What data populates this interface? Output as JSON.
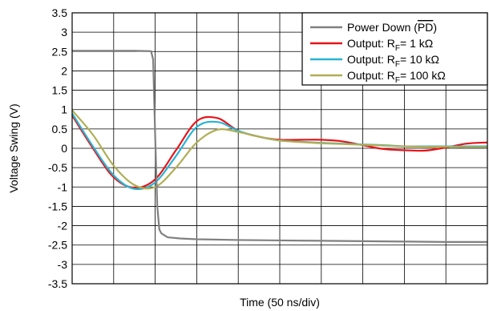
{
  "chart_data": {
    "type": "line",
    "xlabel": "Time (50 ns/div)",
    "ylabel": "Voltage Swing (V)",
    "xlim": [
      0,
      10
    ],
    "ylim": [
      -3.5,
      3.5
    ],
    "y_ticks": [
      "3.5",
      "3",
      "2.5",
      "2",
      "1.5",
      "1",
      "0.5",
      "0",
      "-0.5",
      "-1",
      "-1.5",
      "-2",
      "-2.5",
      "-3",
      "-3.5"
    ],
    "grid": true,
    "legend_position": "top-right",
    "series": [
      {
        "name_parts": {
          "base": "Power Down (",
          "overlined": "PD",
          "tail": ")"
        },
        "color": "#808080",
        "x": [
          0,
          1,
          1.5,
          1.9,
          1.95,
          2.0,
          2.05,
          2.1,
          2.15,
          2.3,
          2.6,
          3,
          4,
          5,
          6,
          7,
          8,
          9,
          10
        ],
        "y": [
          2.52,
          2.52,
          2.52,
          2.51,
          2.3,
          0.3,
          -1.5,
          -2.1,
          -2.2,
          -2.3,
          -2.33,
          -2.35,
          -2.37,
          -2.38,
          -2.39,
          -2.4,
          -2.41,
          -2.42,
          -2.42
        ]
      },
      {
        "name_parts": {
          "base": "Output: R",
          "sub": "F",
          "tail": "= 1 kΩ"
        },
        "color": "#e8141a",
        "x": [
          0,
          0.5,
          1,
          1.5,
          2,
          2.5,
          3,
          3.5,
          4,
          4.5,
          5,
          5.5,
          6,
          6.5,
          7,
          7.5,
          8,
          8.5,
          9,
          9.5,
          10
        ],
        "y": [
          0.85,
          0.0,
          -0.75,
          -1.02,
          -0.8,
          -0.05,
          0.7,
          0.78,
          0.45,
          0.3,
          0.22,
          0.22,
          0.22,
          0.18,
          0.08,
          -0.02,
          -0.05,
          -0.06,
          0.02,
          0.12,
          0.15
        ]
      },
      {
        "name_parts": {
          "base": "Output: R",
          "sub": "F",
          "tail": "= 10 kΩ"
        },
        "color": "#28b4d2",
        "x": [
          0,
          0.5,
          1,
          1.5,
          2,
          2.5,
          3,
          3.5,
          4,
          4.5,
          5,
          5.5,
          6,
          6.5,
          7,
          7.5,
          8,
          8.5,
          9,
          9.5,
          10
        ],
        "y": [
          0.9,
          0.05,
          -0.7,
          -1.05,
          -0.88,
          -0.2,
          0.55,
          0.68,
          0.45,
          0.3,
          0.2,
          0.17,
          0.14,
          0.12,
          0.1,
          0.08,
          0.05,
          0.05,
          0.05,
          0.05,
          0.05
        ]
      },
      {
        "name_parts": {
          "base": "Output: R",
          "sub": "F",
          "tail": "= 100 kΩ"
        },
        "color": "#b0ae55",
        "x": [
          0,
          0.5,
          1,
          1.5,
          2,
          2.5,
          3,
          3.5,
          4,
          4.5,
          5,
          5.5,
          6,
          6.5,
          7,
          7.5,
          8,
          8.5,
          9,
          9.5,
          10
        ],
        "y": [
          0.98,
          0.35,
          -0.45,
          -0.95,
          -1.0,
          -0.5,
          0.15,
          0.48,
          0.42,
          0.3,
          0.2,
          0.16,
          0.13,
          0.11,
          0.09,
          0.07,
          0.05,
          0.04,
          0.04,
          0.03,
          0.03
        ]
      }
    ]
  }
}
